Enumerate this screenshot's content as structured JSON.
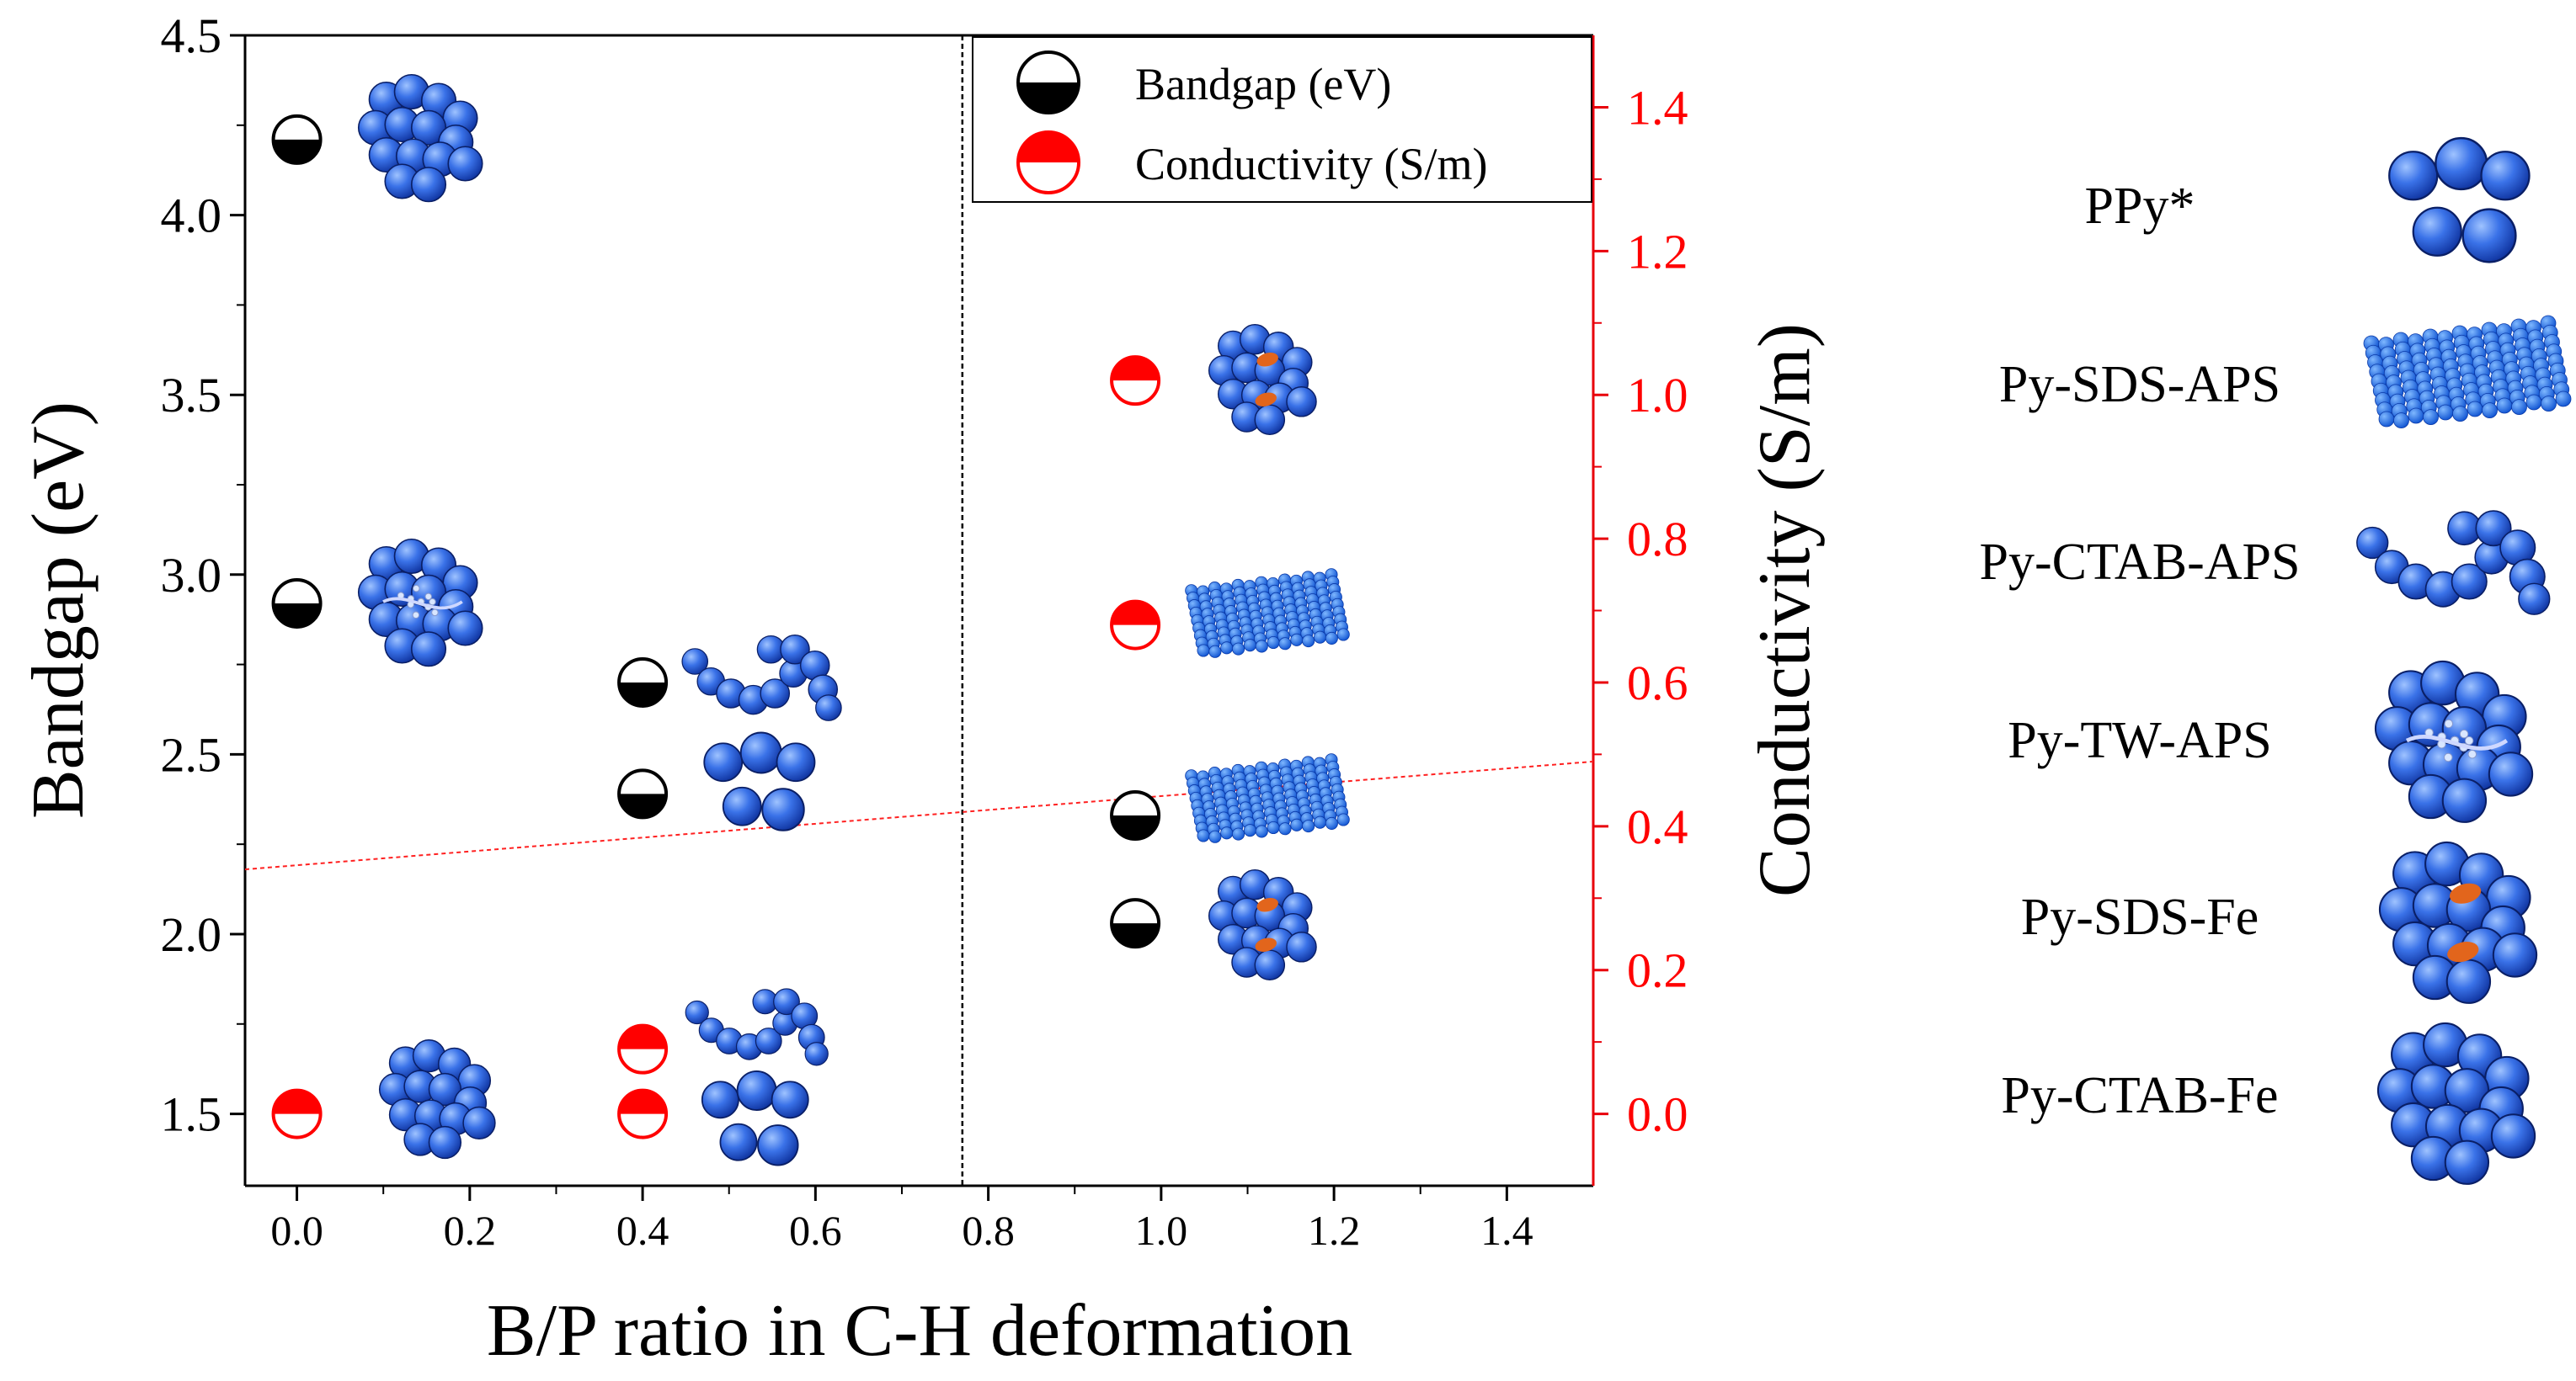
{
  "chart_data": {
    "type": "scatter",
    "xlabel": "B/P ratio in C-H deformation",
    "ylabel": "Bandgap (eV)",
    "y2label": "Conductivity (S/m)",
    "xlim": [
      -0.06,
      1.5
    ],
    "ylim": [
      1.3,
      4.5
    ],
    "y2lim": [
      -0.1,
      1.5
    ],
    "x_ticks": [
      "0.0",
      "0.2",
      "0.4",
      "0.6",
      "0.8",
      "1.0",
      "1.2",
      "1.4"
    ],
    "y_ticks": [
      "1.5",
      "2.0",
      "2.5",
      "3.0",
      "3.5",
      "4.0",
      "4.5"
    ],
    "y2_ticks": [
      "0.0",
      "0.2",
      "0.4",
      "0.6",
      "0.8",
      "1.0",
      "1.2",
      "1.4"
    ],
    "divider_x": 0.77,
    "trendline": {
      "x": [
        -0.06,
        1.5
      ],
      "y": [
        2.18,
        2.48
      ]
    },
    "legend": {
      "bandgap": "Bandgap (eV)",
      "conductivity": "Conductivity (S/m)"
    },
    "series": [
      {
        "name": "Bandgap (eV)",
        "axis": "left",
        "color": "#000000",
        "points": [
          {
            "x": 0.0,
            "y": 4.21,
            "sample": "Py-CTAB-Fe"
          },
          {
            "x": 0.0,
            "y": 2.92,
            "sample": "Py-TW-APS"
          },
          {
            "x": 0.4,
            "y": 2.7,
            "sample": "Py-CTAB-APS"
          },
          {
            "x": 0.4,
            "y": 2.39,
            "sample": "PPy*"
          },
          {
            "x": 0.97,
            "y": 2.33,
            "sample": "Py-SDS-APS"
          },
          {
            "x": 0.97,
            "y": 2.03,
            "sample": "Py-SDS-Fe"
          }
        ]
      },
      {
        "name": "Conductivity (S/m)",
        "axis": "right",
        "color": "#ff0000",
        "points": [
          {
            "x": 0.0,
            "y": 0.0,
            "sample": "Py-CTAB-Fe"
          },
          {
            "x": 0.4,
            "y": 0.09,
            "sample": "Py-CTAB-APS"
          },
          {
            "x": 0.4,
            "y": 0.0,
            "sample": "PPy*"
          },
          {
            "x": 0.97,
            "y": 1.02,
            "sample": "Py-SDS-Fe"
          },
          {
            "x": 0.97,
            "y": 0.68,
            "sample": "Py-SDS-APS"
          }
        ]
      }
    ],
    "sample_legend": [
      {
        "label": "PPy*",
        "icon": "ppy-particles-icon"
      },
      {
        "label": "Py-SDS-APS",
        "icon": "sds-aps-sheet-icon"
      },
      {
        "label": "Py-CTAB-APS",
        "icon": "ctab-aps-chain-icon"
      },
      {
        "label": "Py-TW-APS",
        "icon": "tw-aps-cluster-icon"
      },
      {
        "label": "Py-SDS-Fe",
        "icon": "sds-fe-cluster-icon"
      },
      {
        "label": "Py-CTAB-Fe",
        "icon": "ctab-fe-cluster-icon"
      }
    ]
  }
}
